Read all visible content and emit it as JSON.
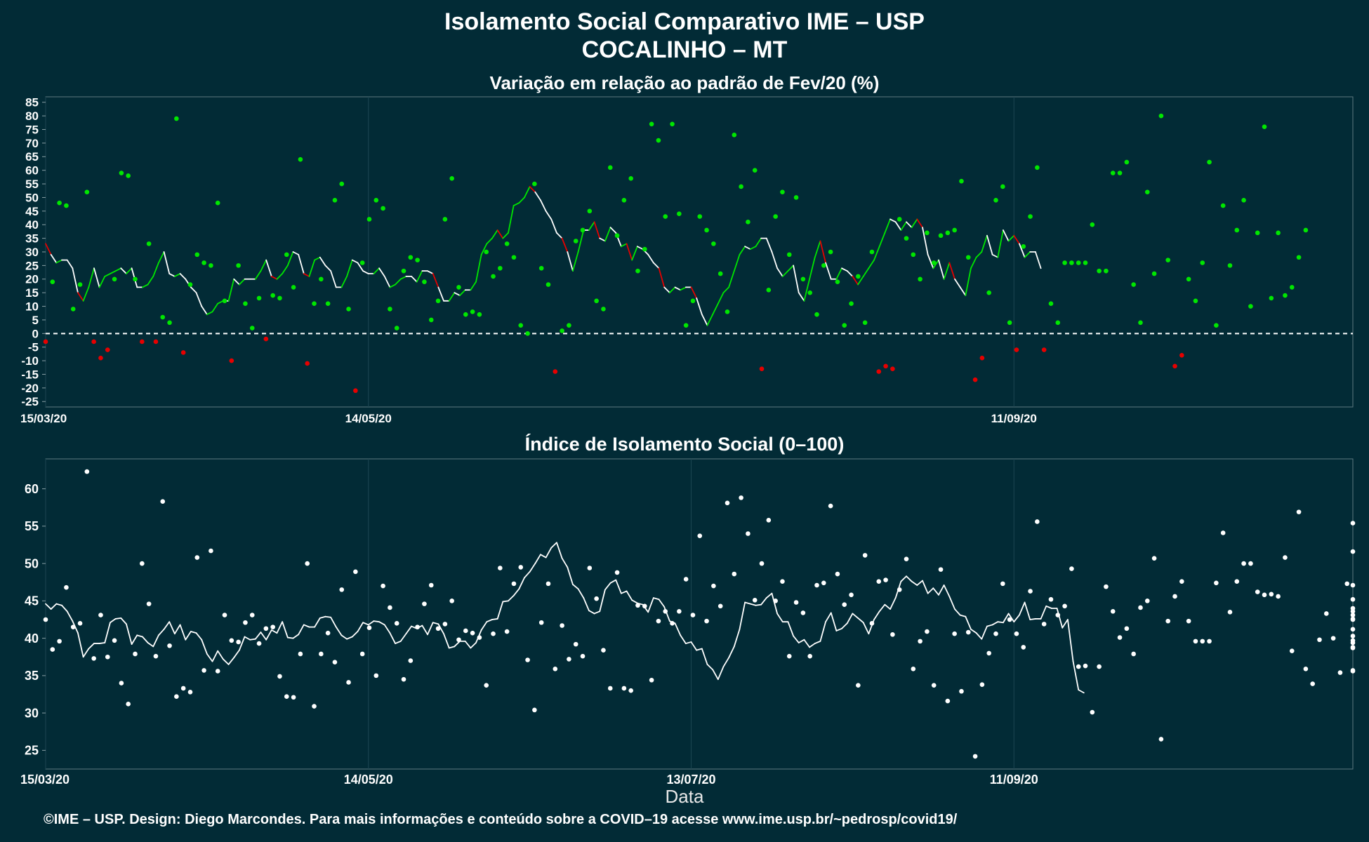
{
  "title": "Isolamento Social Comparativo IME – USP",
  "subtitle": "COCALINHO – MT",
  "xlabel": "Data",
  "footer": "©IME – USP. Design: Diego Marcondes. Para mais informações e conteúdo sobre a COVID–19 acesse www.ime.usp.br/~pedrosp/covid19/",
  "colors": {
    "background": "#022b36",
    "positive": "#00e600",
    "negative": "#e60000",
    "line": "#ffffff",
    "grid": "#1d4652"
  },
  "chart_data": [
    {
      "type": "scatter",
      "title": "Variação em relação ao padrão de Fev/20 (%)",
      "x_start": "15/03/20",
      "x_end": "13/11/20",
      "x_ticks": [
        "15/03/20",
        "14/05/20",
        "11/09/20"
      ],
      "ylim": [
        -27,
        87
      ],
      "y_ticks": [
        85,
        80,
        75,
        70,
        65,
        60,
        55,
        50,
        45,
        40,
        35,
        30,
        25,
        20,
        15,
        10,
        5,
        0,
        -5,
        -10,
        -15,
        -20,
        -25
      ],
      "reference_line": 0,
      "points": [
        -3,
        19,
        48,
        47,
        9,
        18,
        52,
        -3,
        -9,
        -6,
        20,
        59,
        58,
        20,
        -3,
        33,
        -3,
        6,
        4,
        79,
        -7,
        18,
        29,
        26,
        25,
        48,
        12,
        -10,
        25,
        11,
        2,
        13,
        -2,
        14,
        13,
        29,
        17,
        64,
        -11,
        11,
        20,
        11,
        49,
        55,
        9,
        -21,
        26,
        42,
        49,
        46,
        9,
        2,
        23,
        28,
        27,
        19,
        5,
        12,
        42,
        57,
        17,
        7,
        8,
        7,
        30,
        21,
        24,
        33,
        28,
        3,
        0,
        55,
        24,
        18,
        -14,
        1,
        3,
        34,
        38,
        45,
        12,
        9,
        61,
        36,
        49,
        57,
        23,
        31,
        77,
        71,
        43,
        77,
        44,
        3,
        12,
        43,
        38,
        33,
        22,
        8,
        73,
        54,
        41,
        60,
        -13,
        16,
        43,
        52,
        29,
        50,
        20,
        15,
        7,
        25,
        30,
        19,
        3,
        11,
        21,
        4,
        30,
        -14,
        -12,
        -13,
        42,
        35,
        29,
        20,
        37,
        26,
        36,
        37,
        38,
        56,
        28,
        -17,
        -9,
        15,
        49,
        54,
        4,
        -6,
        32,
        43,
        61,
        -6,
        11,
        4,
        26,
        26,
        26,
        26,
        40,
        23,
        23,
        59,
        59,
        63,
        18,
        4,
        52,
        22,
        80,
        27,
        -12,
        -8,
        20,
        12,
        26,
        63,
        3,
        47,
        25,
        38,
        49,
        10,
        37,
        76,
        13,
        37,
        14,
        17,
        28,
        38
      ],
      "trend": [
        33,
        29,
        26,
        27,
        27,
        24,
        15,
        12,
        17,
        24,
        17,
        21,
        22,
        23,
        24,
        22,
        24,
        17,
        17,
        18,
        21,
        26,
        30,
        22,
        21,
        22,
        20,
        17,
        15,
        10,
        7,
        8,
        11,
        12,
        12,
        20,
        18,
        20,
        20,
        20,
        23,
        27,
        21,
        20,
        22,
        25,
        30,
        29,
        22,
        21,
        27,
        28,
        25,
        23,
        17,
        17,
        21,
        27,
        26,
        23,
        22,
        22,
        24,
        21,
        17,
        18,
        20,
        21,
        21,
        19,
        23,
        23,
        22,
        17,
        12,
        12,
        15,
        14,
        16,
        16,
        19,
        29,
        33,
        35,
        38,
        35,
        37,
        47,
        48,
        50,
        54,
        52,
        49,
        45,
        42,
        37,
        35,
        30,
        23,
        30,
        38,
        38,
        41,
        35,
        34,
        39,
        37,
        32,
        33,
        27,
        32,
        31,
        29,
        26,
        24,
        17,
        15,
        17,
        16,
        17,
        17,
        13,
        7,
        3,
        7,
        11,
        15,
        17,
        23,
        29,
        32,
        31,
        32,
        35,
        35,
        30,
        24,
        21,
        23,
        25,
        15,
        12,
        20,
        28,
        34,
        26,
        20,
        20,
        24,
        23,
        21,
        18,
        21,
        24,
        27,
        32,
        37,
        42,
        41,
        38,
        41,
        39,
        42,
        39,
        29,
        24,
        27,
        20,
        26,
        20,
        17,
        14,
        24,
        28,
        30,
        36,
        29,
        28,
        38,
        34,
        36,
        33,
        28,
        30,
        30,
        24
      ]
    },
    {
      "type": "scatter",
      "title": "Índice de Isolamento Social (0–100)",
      "x_start": "15/03/20",
      "x_end": "13/11/20",
      "x_ticks": [
        "15/03/20",
        "14/05/20",
        "13/07/20",
        "11/09/20"
      ],
      "ylim": [
        22.5,
        64
      ],
      "y_ticks": [
        60,
        55,
        50,
        45,
        40,
        35,
        30,
        25
      ],
      "points": [
        42.5,
        38.5,
        39.6,
        46.8,
        41.5,
        42,
        62.3,
        37.3,
        43.1,
        37.5,
        39.7,
        34,
        31.2,
        37.9,
        50,
        44.6,
        37.6,
        58.3,
        39,
        32.2,
        33.3,
        32.8,
        50.8,
        35.7,
        51.7,
        35.6,
        43.1,
        39.7,
        39.5,
        42.1,
        43.1,
        39.3,
        41.3,
        41.5,
        34.9,
        32.2,
        32.1,
        37.9,
        50,
        30.9,
        37.9,
        40.7,
        36.8,
        46.5,
        34.1,
        48.9,
        37.9,
        41.4,
        35,
        47,
        44.1,
        42,
        34.5,
        37,
        41.5,
        44.6,
        47.1,
        41.3,
        41.9,
        45,
        39.8,
        41,
        40.7,
        40.1,
        33.7,
        40.6,
        49.4,
        40.9,
        47.3,
        49.5,
        37.1,
        30.4,
        42.1,
        47.3,
        35.9,
        41.7,
        37.2,
        39.2,
        37.6,
        49.4,
        45.3,
        38.4,
        33.3,
        48.8,
        33.3,
        33,
        44.4,
        44.3,
        34.4,
        42.3,
        43.6,
        42,
        43.6,
        47.9,
        43.1,
        53.7,
        42.3,
        47,
        44.3,
        58.1,
        48.6,
        58.8,
        54,
        45.1,
        50,
        55.8,
        45,
        47.6,
        37.6,
        44.8,
        43.4,
        37.6,
        47.1,
        47.4,
        57.7,
        48.6,
        44.5,
        45.8,
        33.7,
        51.1,
        42,
        47.6,
        47.8,
        40.5,
        46.5,
        50.6,
        35.9,
        39.6,
        40.9,
        33.7,
        49.2,
        31.6,
        40.6,
        32.9,
        40.8,
        24.2,
        33.8,
        38,
        40.6,
        47.3,
        42.5,
        40.6,
        38.8,
        46.3,
        55.6,
        41.9,
        45.2,
        43.1,
        44.3,
        49.3,
        36.2,
        36.3,
        30.1,
        36.2,
        46.9,
        43.6,
        40.1,
        41.3,
        37.9,
        44.1,
        45,
        50.7,
        26.5,
        42.3,
        45.6,
        47.6,
        42.3,
        39.6,
        39.6,
        39.6,
        47.4,
        54.1,
        43.5,
        47.6,
        50,
        50,
        46.2,
        45.8,
        45.9,
        45.6,
        50.8,
        38.3,
        56.9,
        35.9,
        33.9,
        39.8,
        43.3,
        40,
        35.4,
        47.3,
        35.7,
        45.2,
        38.7,
        47.1,
        39.4,
        43.1,
        42.5,
        42.6,
        55.4,
        35.6,
        38.8,
        44,
        51.6,
        39.7,
        41.2,
        40.3,
        43.6
      ],
      "trend": [
        44.6,
        43.9,
        44.6,
        44.4,
        43.6,
        42.3,
        40.7,
        37.5,
        38.6,
        39.3,
        39.3,
        39.4,
        42.1,
        42.6,
        42.7,
        41.9,
        39.2,
        40.4,
        40.2,
        39.4,
        38.9,
        40.4,
        41.2,
        42.2,
        40.6,
        41.8,
        39.8,
        40.9,
        40.7,
        39.8,
        37.9,
        36.9,
        38.3,
        37.2,
        36.5,
        37.4,
        38.4,
        40.2,
        39.8,
        39.9,
        40.8,
        39.8,
        41.1,
        40.7,
        42.2,
        40.1,
        40,
        40.5,
        41.8,
        41.5,
        41.5,
        42.7,
        42.9,
        42.8,
        41.5,
        40.4,
        39.9,
        40.2,
        40.9,
        42.1,
        41.8,
        42.3,
        42.2,
        41.8,
        40.7,
        39.3,
        39.6,
        40.6,
        41.6,
        41.3,
        41.7,
        40.5,
        42.1,
        41.9,
        40.6,
        38.7,
        38.9,
        39.6,
        39.6,
        38.7,
        39.4,
        41.1,
        42.2,
        42.5,
        42.6,
        44.9,
        45,
        45.7,
        46.6,
        48.1,
        48.9,
        50,
        51.2,
        50.8,
        52.1,
        52.8,
        50.7,
        49.5,
        47.2,
        46.6,
        45.4,
        43.7,
        43.3,
        43.6,
        46.5,
        47.4,
        47.8,
        46,
        46.3,
        45.1,
        44.7,
        44.5,
        43.5,
        45.4,
        45.2,
        44.2,
        42.3,
        42,
        40.4,
        39.3,
        39.5,
        38.4,
        38.6,
        36.5,
        35.8,
        34.5,
        36.2,
        37.4,
        38.9,
        41.2,
        44.8,
        44.6,
        44.4,
        44.5,
        45.4,
        46,
        43.3,
        42.2,
        42.2,
        40.3,
        39.4,
        39.8,
        38.8,
        39.3,
        39.6,
        42.2,
        43.4,
        41,
        41.3,
        42,
        43.3,
        42.7,
        42.1,
        40.6,
        42.5,
        43.6,
        44.5,
        43.9,
        45.4,
        47.6,
        48.3,
        47.6,
        47.1,
        47.7,
        46,
        46.7,
        45.8,
        47.1,
        45.6,
        43.9,
        43.1,
        42.9,
        41.2,
        40.7,
        39.9,
        41.6,
        41.8,
        42.2,
        42.1,
        43.3,
        42.2,
        43.1,
        44.8,
        42.5,
        42.6,
        42.6,
        44.3,
        44,
        44,
        41.4,
        42.5,
        36.9,
        33.1,
        32.7
      ]
    }
  ]
}
